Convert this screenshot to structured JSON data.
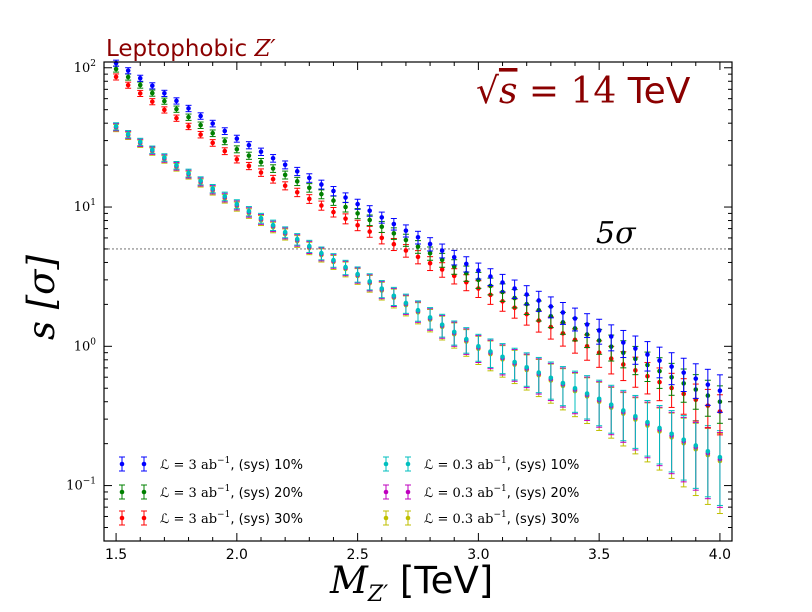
{
  "chart_data": {
    "type": "scatter",
    "title": "Leptophobic Z′",
    "title_prefix": "Leptophobic ",
    "title_symbol": "Z′",
    "energy_label": "√s = 14 TeV",
    "energy_sqrt": "√",
    "energy_var": "s",
    "energy_eq": " = 14",
    "energy_unit": " TeV",
    "xlabel": "M",
    "xlabel_sub": "Z′",
    "xlabel_unit": " [TeV]",
    "ylabel": "s [σ]",
    "yscale": "log",
    "xlim": [
      1.45,
      4.05
    ],
    "ylim": [
      0.04,
      110
    ],
    "xticks": [
      1.5,
      2.0,
      2.5,
      3.0,
      3.5,
      4.0
    ],
    "xtick_labels": [
      "1.5",
      "2.0",
      "2.5",
      "3.0",
      "3.5",
      "4.0"
    ],
    "yticks": [
      0.1,
      1,
      10,
      100
    ],
    "ytick_base": "10",
    "ytick_exps": [
      "−1",
      "0",
      "1",
      "2"
    ],
    "reference_line": {
      "y": 5,
      "label": "5σ"
    },
    "x_start": 1.5,
    "x_step": 0.05,
    "n_points": 51,
    "legend_location": "lower-left",
    "series": [
      {
        "name": "ℒ = 3 ab⁻¹, (sys) 10%",
        "lumi": "3",
        "sys": "10%",
        "color": "#0000ff",
        "y_at": [
          [
            1.5,
            108
          ],
          [
            2.0,
            31
          ],
          [
            2.5,
            10.5
          ],
          [
            3.0,
            3.5
          ],
          [
            3.5,
            1.3
          ],
          [
            4.0,
            0.48
          ]
        ],
        "rel_err_start": 0.05,
        "rel_err_end": 0.3
      },
      {
        "name": "ℒ = 3 ab⁻¹, (sys) 20%",
        "lumi": "3",
        "sys": "20%",
        "color": "#008000",
        "y_at": [
          [
            1.5,
            98
          ],
          [
            2.0,
            26
          ],
          [
            2.5,
            9.0
          ],
          [
            3.0,
            3.0
          ],
          [
            3.5,
            1.1
          ],
          [
            4.0,
            0.4
          ]
        ],
        "rel_err_start": 0.05,
        "rel_err_end": 0.3
      },
      {
        "name": "ℒ = 3 ab⁻¹, (sys) 30%",
        "lumi": "3",
        "sys": "30%",
        "color": "#ff0000",
        "y_at": [
          [
            1.5,
            86
          ],
          [
            2.0,
            22
          ],
          [
            2.5,
            7.4
          ],
          [
            3.0,
            2.6
          ],
          [
            3.5,
            0.9
          ],
          [
            4.0,
            0.34
          ]
        ],
        "rel_err_start": 0.05,
        "rel_err_end": 0.32
      },
      {
        "name": "ℒ = 0.3 ab⁻¹, (sys) 10%",
        "lumi": "0.3",
        "sys": "10%",
        "color": "#00bfbf",
        "y_at": [
          [
            1.5,
            38
          ],
          [
            2.0,
            10.5
          ],
          [
            2.5,
            3.3
          ],
          [
            3.0,
            1.0
          ],
          [
            3.5,
            0.42
          ],
          [
            4.0,
            0.16
          ]
        ],
        "rel_err_start": 0.06,
        "rel_err_end": 0.55
      },
      {
        "name": "ℒ = 0.3 ab⁻¹, (sys) 20%",
        "lumi": "0.3",
        "sys": "20%",
        "color": "#bf00bf",
        "y_at": [
          [
            1.5,
            37.5
          ],
          [
            2.0,
            10.3
          ],
          [
            2.5,
            3.25
          ],
          [
            3.0,
            0.98
          ],
          [
            3.5,
            0.41
          ],
          [
            4.0,
            0.155
          ]
        ],
        "rel_err_start": 0.06,
        "rel_err_end": 0.55
      },
      {
        "name": "ℒ = 0.3 ab⁻¹, (sys) 30%",
        "lumi": "0.3",
        "sys": "30%",
        "color": "#bfbf00",
        "y_at": [
          [
            1.5,
            37
          ],
          [
            2.0,
            10.1
          ],
          [
            2.5,
            3.2
          ],
          [
            3.0,
            0.96
          ],
          [
            3.5,
            0.4
          ],
          [
            4.0,
            0.15
          ]
        ],
        "rel_err_start": 0.06,
        "rel_err_end": 0.58
      }
    ]
  },
  "legend_text": {
    "lumi_symbol": "ℒ = ",
    "unit": " ab",
    "unit_exp": "−1",
    "sys_prefix": ", (sys) "
  }
}
